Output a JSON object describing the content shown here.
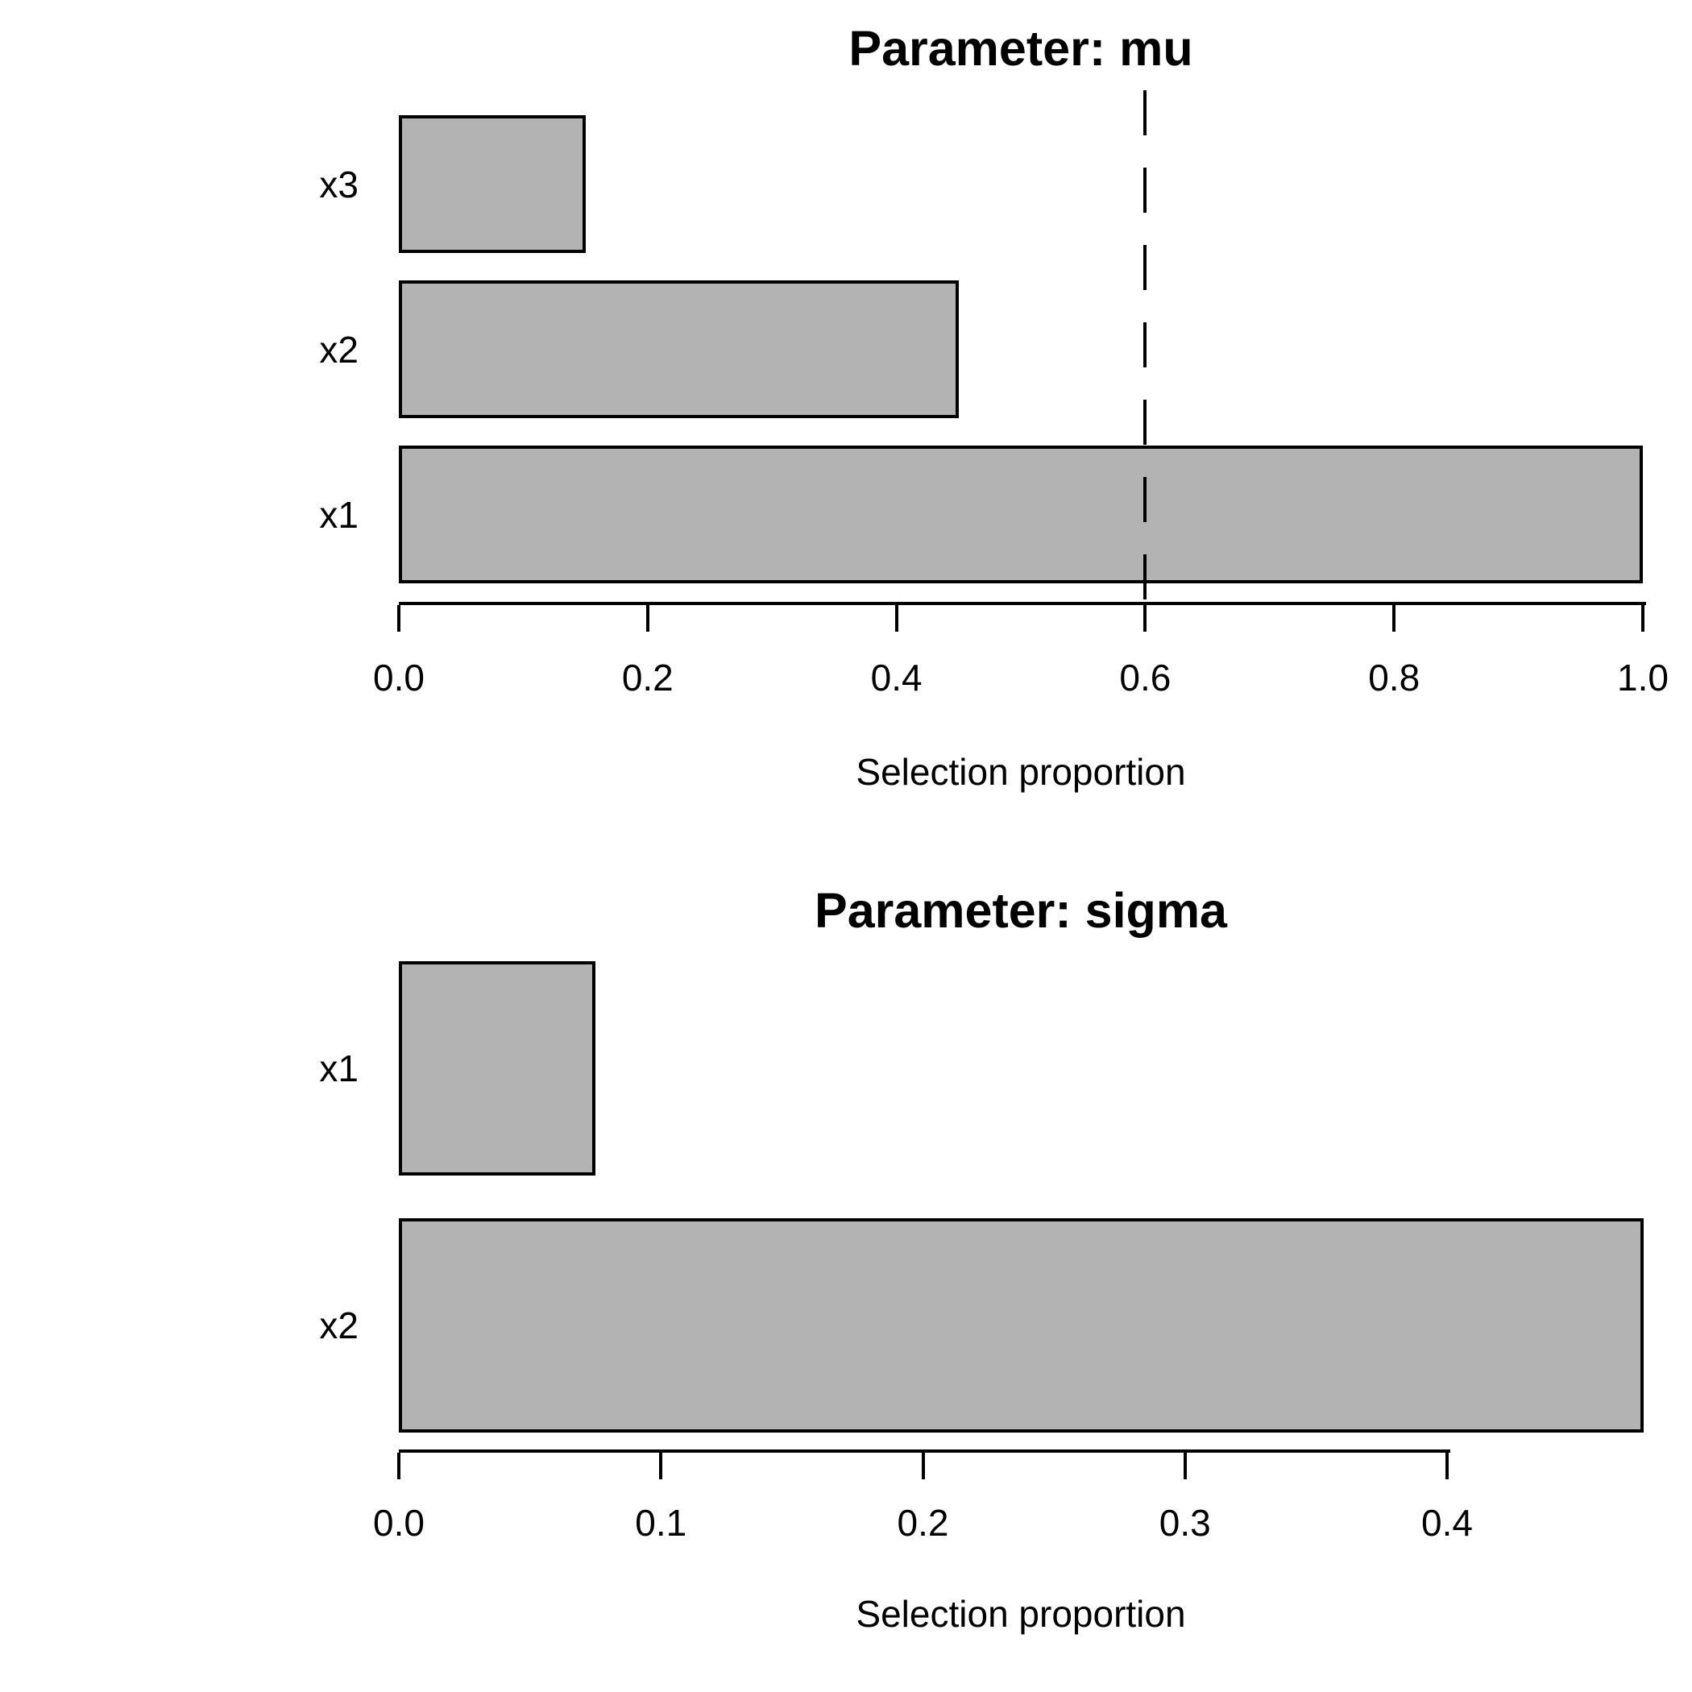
{
  "figure": {
    "background": "#ffffff",
    "bar_fill": "#b3b3b3",
    "bar_border": "#000000"
  },
  "chart_data": [
    {
      "type": "bar",
      "orientation": "horizontal",
      "title": "Parameter: mu",
      "xlabel": "Selection proportion",
      "categories": [
        "x3",
        "x2",
        "x1"
      ],
      "values": [
        0.15,
        0.45,
        1.0
      ],
      "bars": [
        {
          "label": "x3",
          "value": 0.15
        },
        {
          "label": "x2",
          "value": 0.45
        },
        {
          "label": "x1",
          "value": 1.0
        }
      ],
      "xlim": [
        0,
        1.0
      ],
      "ticks": [
        0.0,
        0.2,
        0.4,
        0.6,
        0.8,
        1.0
      ],
      "tick_labels": [
        "0.0",
        "0.2",
        "0.4",
        "0.6",
        "0.8",
        "1.0"
      ],
      "threshold_line": {
        "value": 0.6,
        "style": "dashed",
        "color": "#000000"
      },
      "grid": "off",
      "legend": "none"
    },
    {
      "type": "bar",
      "orientation": "horizontal",
      "title": "Parameter: sigma",
      "xlabel": "Selection proportion",
      "categories": [
        "x1",
        "x2"
      ],
      "values": [
        0.075,
        0.475
      ],
      "bars": [
        {
          "label": "x1",
          "value": 0.075
        },
        {
          "label": "x2",
          "value": 0.475
        }
      ],
      "xlim": [
        0,
        0.475
      ],
      "ticks": [
        0.0,
        0.1,
        0.2,
        0.3,
        0.4
      ],
      "tick_labels": [
        "0.0",
        "0.1",
        "0.2",
        "0.3",
        "0.4"
      ],
      "threshold_line": null,
      "grid": "off",
      "legend": "none"
    }
  ]
}
